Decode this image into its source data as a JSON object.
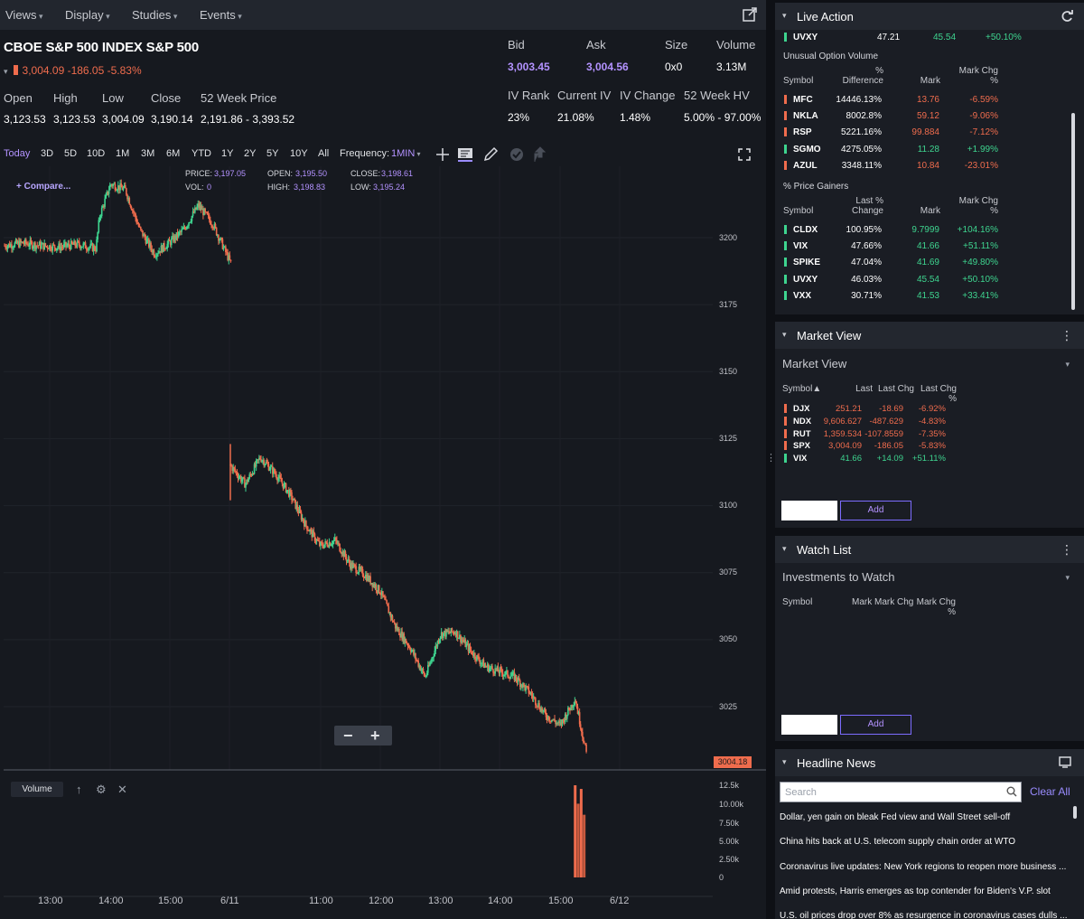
{
  "menu": [
    "Views",
    "Display",
    "Studies",
    "Events"
  ],
  "symbol": {
    "title": "CBOE S&P 500 INDEX S&P 500",
    "change_text": "3,004.09 -186.05 -5.83%"
  },
  "stats": {
    "open_label": "Open",
    "open": "3,123.53",
    "high_label": "High",
    "high": "3,123.53",
    "low_label": "Low",
    "low": "3,004.09",
    "close_label": "Close",
    "close": "3,190.14",
    "week52_label": "52 Week Price",
    "week52": "2,191.86 - 3,393.52",
    "bid_label": "Bid",
    "bid": "3,003.45",
    "ask_label": "Ask",
    "ask": "3,004.56",
    "size_label": "Size",
    "size": "0x0",
    "volume_label": "Volume",
    "volume": "3.13M",
    "ivrank_label": "IV Rank",
    "ivrank": "23%",
    "curiv_label": "Current IV",
    "curiv": "21.08%",
    "ivchg_label": "IV Change",
    "ivchg": "1.48%",
    "hv52_label": "52 Week HV",
    "hv52": "5.00% - 97.00%"
  },
  "ranges": [
    "Today",
    "3D",
    "5D",
    "10D",
    "1M",
    "3M",
    "6M",
    "YTD",
    "1Y",
    "2Y",
    "5Y",
    "10Y",
    "All"
  ],
  "frequency": {
    "label": "Frequency:",
    "value": "1MIN"
  },
  "compare_label": "+ Compare...",
  "ohlc": {
    "price_label": "PRICE:",
    "price": "3,197.05",
    "vol_label": "VOL:",
    "vol": "0",
    "open_label": "OPEN:",
    "open": "3,195.50",
    "high_label": "HIGH:",
    "high": "3,198.83",
    "close_label": "CLOSE:",
    "close": "3,198.61",
    "low_label": "LOW:",
    "low": "3,195.24"
  },
  "price_flag": "3004.18",
  "volume_panel_label": "Volume",
  "chart_data": {
    "type": "candlestick",
    "y_ticks": [
      "3200",
      "3175",
      "3150",
      "3125",
      "3100",
      "3075",
      "3050",
      "3025"
    ],
    "vol_ticks": [
      "12.5k",
      "10.00k",
      "7.50k",
      "5.00k",
      "2.50k",
      "0"
    ],
    "x_ticks": [
      "13:00",
      "14:00",
      "15:00",
      "6/11",
      "11:00",
      "12:00",
      "13:00",
      "14:00",
      "15:00",
      "6/12"
    ],
    "ylim": [
      3000,
      3222
    ],
    "day1_close_path": [
      [
        12.75,
        3197
      ],
      [
        13.0,
        3198
      ],
      [
        13.25,
        3197
      ],
      [
        13.5,
        3196.5
      ],
      [
        13.75,
        3197.5
      ],
      [
        14.0,
        3196
      ],
      [
        14.05,
        3208
      ],
      [
        14.2,
        3220
      ],
      [
        14.4,
        3218
      ],
      [
        14.6,
        3203
      ],
      [
        14.8,
        3194
      ],
      [
        15.0,
        3198
      ],
      [
        15.2,
        3203
      ],
      [
        15.4,
        3212
      ],
      [
        15.6,
        3205
      ],
      [
        15.85,
        3190
      ]
    ],
    "day2_close_path": [
      [
        9.5,
        3115
      ],
      [
        9.75,
        3108
      ],
      [
        10.0,
        3118
      ],
      [
        10.25,
        3112
      ],
      [
        10.5,
        3104
      ],
      [
        10.75,
        3093
      ],
      [
        11.0,
        3085
      ],
      [
        11.25,
        3087
      ],
      [
        11.5,
        3078
      ],
      [
        11.75,
        3074
      ],
      [
        12.0,
        3068
      ],
      [
        12.25,
        3055
      ],
      [
        12.5,
        3047
      ],
      [
        12.75,
        3036
      ],
      [
        13.0,
        3052
      ],
      [
        13.25,
        3053
      ],
      [
        13.5,
        3046
      ],
      [
        13.75,
        3040
      ],
      [
        14.0,
        3038
      ],
      [
        14.25,
        3036
      ],
      [
        14.5,
        3030
      ],
      [
        14.75,
        3022
      ],
      [
        15.0,
        3018
      ],
      [
        15.25,
        3028
      ],
      [
        15.45,
        3006
      ]
    ],
    "volume_bars": [
      {
        "x": 15.25,
        "value": 12500
      },
      {
        "x": 15.3,
        "value": 10000
      },
      {
        "x": 15.35,
        "value": 12000
      },
      {
        "x": 15.4,
        "value": 8500
      }
    ],
    "colors": {
      "up": "#3ed48f",
      "down": "#ef6c4d"
    }
  },
  "live_action": {
    "title": "Live Action",
    "top_row": {
      "symbol": "UVXY",
      "c1": "47.21",
      "c2": "45.54",
      "c3": "+50.10%"
    },
    "unusual_title": "Unusual Option Volume",
    "unusual_headers": [
      "Symbol",
      "% Difference",
      "Mark",
      "Mark Chg %"
    ],
    "unusual_rows": [
      {
        "symbol": "MFC",
        "diff": "14446.13%",
        "mark": "13.76",
        "chg": "-6.59%",
        "dir": "down"
      },
      {
        "symbol": "NKLA",
        "diff": "8002.8%",
        "mark": "59.12",
        "chg": "-9.06%",
        "dir": "down"
      },
      {
        "symbol": "RSP",
        "diff": "5221.16%",
        "mark": "99.884",
        "chg": "-7.12%",
        "dir": "down"
      },
      {
        "symbol": "SGMO",
        "diff": "4275.05%",
        "mark": "11.28",
        "chg": "+1.99%",
        "dir": "up"
      },
      {
        "symbol": "AZUL",
        "diff": "3348.11%",
        "mark": "10.84",
        "chg": "-23.01%",
        "dir": "down"
      }
    ],
    "gainers_title": "% Price Gainers",
    "gainers_headers": [
      "Symbol",
      "Last % Change",
      "Mark",
      "Mark Chg %"
    ],
    "gainers_rows": [
      {
        "symbol": "CLDX",
        "last": "100.95%",
        "mark": "9.7999",
        "chg": "+104.16%"
      },
      {
        "symbol": "VIX",
        "last": "47.66%",
        "mark": "41.66",
        "chg": "+51.11%"
      },
      {
        "symbol": "SPIKE",
        "last": "47.04%",
        "mark": "41.69",
        "chg": "+49.80%"
      },
      {
        "symbol": "UVXY",
        "last": "46.03%",
        "mark": "45.54",
        "chg": "+50.10%"
      },
      {
        "symbol": "VXX",
        "last": "30.71%",
        "mark": "41.53",
        "chg": "+33.41%"
      }
    ]
  },
  "market_view": {
    "title": "Market View",
    "dropdown": "Market View",
    "headers": [
      "Symbol▲",
      "Last",
      "Last Chg",
      "Last Chg %"
    ],
    "rows": [
      {
        "symbol": "DJX",
        "last": "251.21",
        "chg": "-18.69",
        "pct": "-6.92%",
        "dir": "down"
      },
      {
        "symbol": "NDX",
        "last": "9,606.627",
        "chg": "-487.629",
        "pct": "-4.83%",
        "dir": "down"
      },
      {
        "symbol": "RUT",
        "last": "1,359.534",
        "chg": "-107.8559",
        "pct": "-7.35%",
        "dir": "down"
      },
      {
        "symbol": "SPX",
        "last": "3,004.09",
        "chg": "-186.05",
        "pct": "-5.83%",
        "dir": "down"
      },
      {
        "symbol": "VIX",
        "last": "41.66",
        "chg": "+14.09",
        "pct": "+51.11%",
        "dir": "up"
      }
    ],
    "add_label": "Add"
  },
  "watch_list": {
    "title": "Watch List",
    "dropdown": "Investments to Watch",
    "headers": [
      "Symbol",
      "Mark",
      "Mark Chg",
      "Mark Chg %"
    ],
    "add_label": "Add"
  },
  "news": {
    "title": "Headline News",
    "search_placeholder": "Search",
    "clear_label": "Clear All",
    "headlines": [
      "Dollar, yen gain on bleak Fed view and Wall Street sell-off",
      "China hits back at U.S. telecom supply chain order at WTO",
      "Coronavirus live updates: New York regions to reopen more business ...",
      "Amid protests, Harris emerges as top contender for Biden's V.P. slot",
      "U.S. oil prices drop over 8% as resurgence in coronavirus cases dulls ..."
    ]
  }
}
